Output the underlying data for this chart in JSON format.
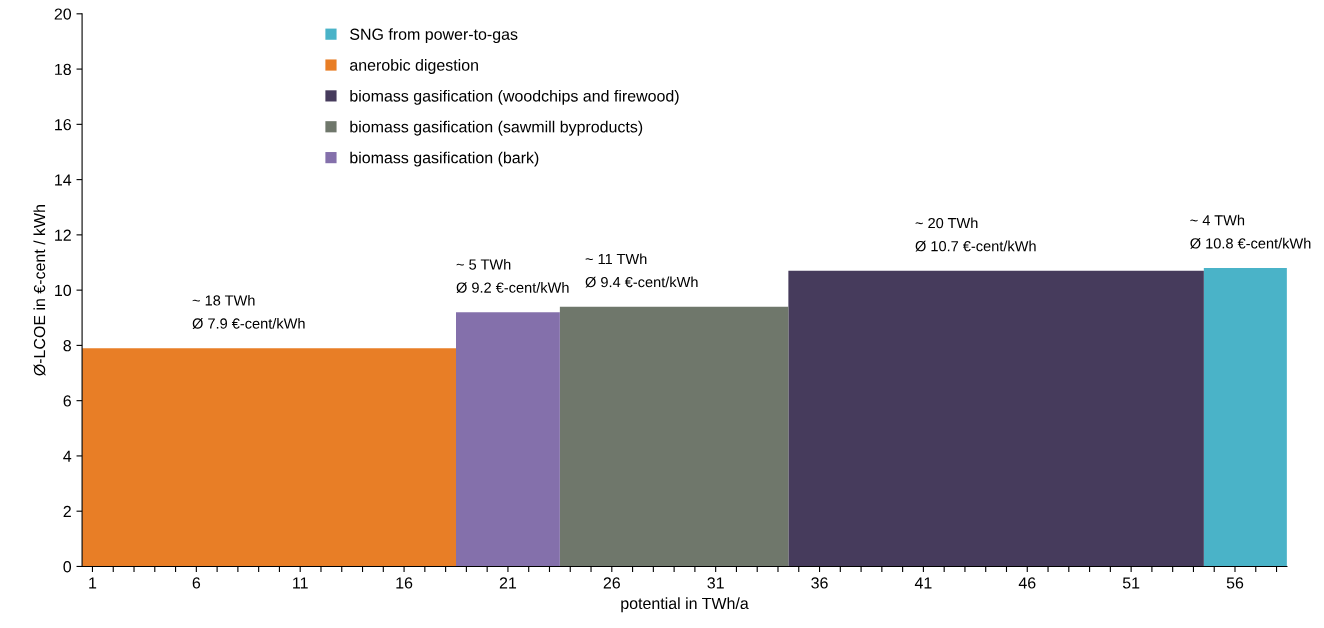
{
  "chart_data": {
    "type": "area",
    "xlabel": "potential in TWh/a",
    "ylabel": "Ø-LCOE in €-cent / kWh",
    "series": [
      {
        "name": "SNG from power-to-gas",
        "color": "#4ab3c8",
        "x": [
          54.5,
          58.5
        ],
        "values": [
          10.8,
          10.8
        ]
      },
      {
        "name": "anerobic digestion",
        "color": "#e87e26",
        "x": [
          0.5,
          18.5
        ],
        "values": [
          7.9,
          7.9
        ]
      },
      {
        "name": "biomass gasification (woodchips and firewood)",
        "color": "#463b5c",
        "x": [
          34.5,
          54.5
        ],
        "values": [
          10.7,
          10.7
        ]
      },
      {
        "name": "biomass gasification (sawmill byproducts)",
        "color": "#6f776b",
        "x": [
          23.5,
          34.5
        ],
        "values": [
          9.4,
          9.4
        ]
      },
      {
        "name": "biomass gasification (bark)",
        "color": "#8470ab",
        "x": [
          18.5,
          23.5
        ],
        "values": [
          9.2,
          9.2
        ]
      }
    ],
    "annotations": [
      "~ 18 TWh\nØ 7.9 €-cent/kWh",
      "~ 5 TWh\nØ 9.2 €-cent/kWh",
      "~ 11 TWh\nØ 9.4 €-cent/kWh",
      "~ 20 TWh\nØ 10.7 €-cent/kWh",
      "~ 4 TWh\nØ 10.8 €-cent/kWh"
    ],
    "xlim": [
      0.5,
      58.5
    ],
    "xticks": [
      1,
      {
        "value": 2,
        "label": null
      },
      {
        "value": 3,
        "label": null
      },
      {
        "value": 4,
        "label": null
      },
      {
        "value": 5,
        "label": null
      },
      6,
      {
        "value": 7,
        "label": null
      },
      {
        "value": 8,
        "label": null
      },
      {
        "value": 9,
        "label": null
      },
      {
        "value": 10,
        "label": null
      },
      11,
      {
        "value": 12,
        "label": null
      },
      {
        "value": 13,
        "label": null
      },
      {
        "value": 14,
        "label": null
      },
      {
        "value": 15,
        "label": null
      },
      16,
      {
        "value": 17,
        "label": null
      },
      {
        "value": 18,
        "label": null
      },
      {
        "value": 19,
        "label": null
      },
      {
        "value": 20,
        "label": null
      },
      21,
      {
        "value": 22,
        "label": null
      },
      {
        "value": 23,
        "label": null
      },
      {
        "value": 24,
        "label": null
      },
      {
        "value": 25,
        "label": null
      },
      26,
      {
        "value": 27,
        "label": null
      },
      {
        "value": 28,
        "label": null
      },
      {
        "value": 29,
        "label": null
      },
      {
        "value": 30,
        "label": null
      },
      31,
      {
        "value": 32,
        "label": null
      },
      {
        "value": 33,
        "label": null
      },
      {
        "value": 34,
        "label": null
      },
      {
        "value": 35,
        "label": null
      },
      36,
      {
        "value": 37,
        "label": null
      },
      {
        "value": 38,
        "label": null
      },
      {
        "value": 39,
        "label": null
      },
      {
        "value": 40,
        "label": null
      },
      41,
      {
        "value": 42,
        "label": null
      },
      {
        "value": 43,
        "label": null
      },
      {
        "value": 44,
        "label": null
      },
      {
        "value": 45,
        "label": null
      },
      46,
      {
        "value": 47,
        "label": null
      },
      {
        "value": 48,
        "label": null
      },
      {
        "value": 49,
        "label": null
      },
      {
        "value": 50,
        "label": null
      },
      51,
      {
        "value": 52,
        "label": null
      },
      {
        "value": 53,
        "label": null
      },
      {
        "value": 54,
        "label": null
      },
      {
        "value": 55,
        "label": null
      },
      56,
      {
        "value": 57,
        "label": null
      },
      {
        "value": 58,
        "label": null
      }
    ],
    "ylim": [
      0,
      20
    ],
    "yticks": [
      0,
      2,
      4,
      6,
      8,
      10,
      12,
      14,
      16,
      18,
      20
    ],
    "grid": false,
    "legend": "top left"
  }
}
